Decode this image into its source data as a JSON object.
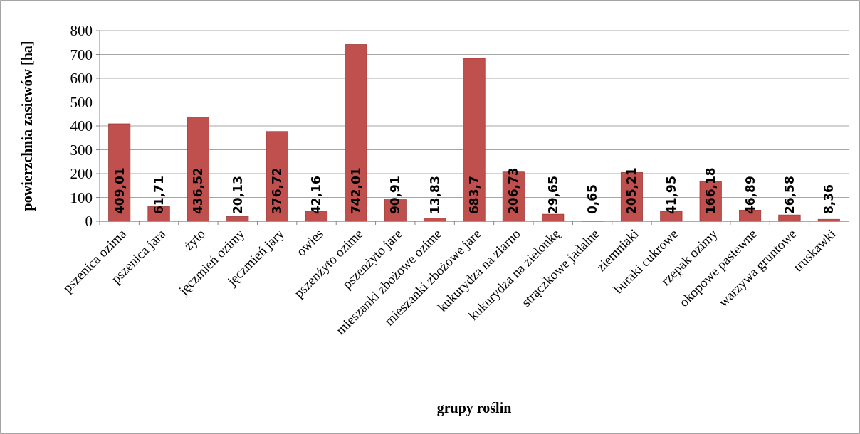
{
  "chart_data": {
    "type": "bar",
    "xlabel": "grupy roślin",
    "ylabel": "powierzchnia zasiewów [ha]",
    "categories": [
      "pszenica ozima",
      "pszenica jara",
      "żyto",
      "jęczmień ozimy",
      "jęczmień jary",
      "owies",
      "pszenżyto ozime",
      "pszenżyto jare",
      "mieszanki zbożowe ozime",
      "mieszanki zbożowe jare",
      "kukurydza na ziarno",
      "kukurydza na zielonkę",
      "strączkowe jadalne",
      "ziemniaki",
      "buraki cukrowe",
      "rzepak ozimy",
      "okopowe pastewne",
      "warzywa gruntowe",
      "truskawki"
    ],
    "values": [
      409.01,
      61.71,
      436.52,
      20.13,
      376.72,
      42.16,
      742.01,
      90.91,
      13.83,
      683.7,
      206.73,
      29.65,
      0.65,
      205.21,
      41.95,
      166.18,
      46.89,
      26.58,
      8.36
    ],
    "value_labels": [
      "409,01",
      "61,71",
      "436,52",
      "20,13",
      "376,72",
      "42,16",
      "742,01",
      "90,91",
      "13,83",
      "683,7",
      "206,73",
      "29,65",
      "0,65",
      "205,21",
      "41,95",
      "166,18",
      "46,89",
      "26,58",
      "8,36"
    ],
    "color": "#c0504d",
    "ylim": [
      0,
      800
    ],
    "yticks": [
      0,
      100,
      200,
      300,
      400,
      500,
      600,
      700,
      800
    ],
    "grid": "y"
  }
}
